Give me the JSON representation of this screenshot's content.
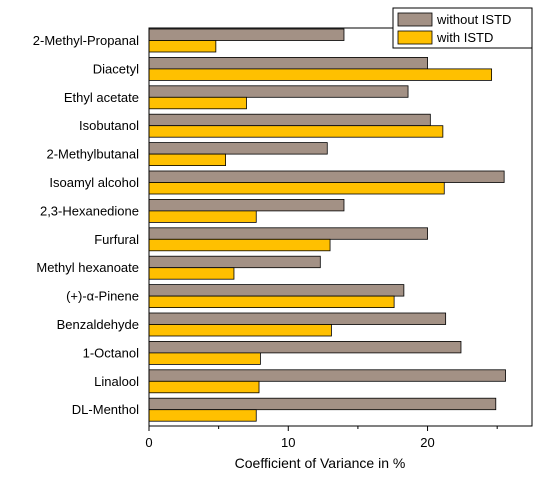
{
  "chart_data": {
    "type": "bar",
    "orientation": "horizontal",
    "categories": [
      "2-Methyl-Propanal",
      "Diacetyl",
      "Ethyl acetate",
      "Isobutanol",
      "2-Methylbutanal",
      "Isoamyl alcohol",
      "2,3-Hexanedione",
      "Furfural",
      "Methyl hexanoate",
      "(+)-α-Pinene",
      "Benzaldehyde",
      "1-Octanol",
      "Linalool",
      "DL-Menthol"
    ],
    "series": [
      {
        "name": "without ISTD",
        "color": "#a39185",
        "values": [
          14.0,
          20.0,
          18.6,
          20.2,
          12.8,
          25.5,
          14.0,
          20.0,
          12.3,
          18.3,
          21.3,
          22.4,
          25.6,
          24.9
        ]
      },
      {
        "name": "with ISTD",
        "color": "#ffc000",
        "values": [
          4.8,
          24.6,
          7.0,
          21.1,
          5.5,
          21.2,
          7.7,
          13.0,
          6.1,
          17.6,
          13.1,
          8.0,
          7.9,
          7.7
        ]
      }
    ],
    "xlabel": "Coefficient of Variance in %",
    "ylabel": "",
    "xlim": [
      0,
      27.5
    ],
    "xticks": [
      0,
      10,
      20
    ],
    "grid": false,
    "legend": "top-right"
  }
}
